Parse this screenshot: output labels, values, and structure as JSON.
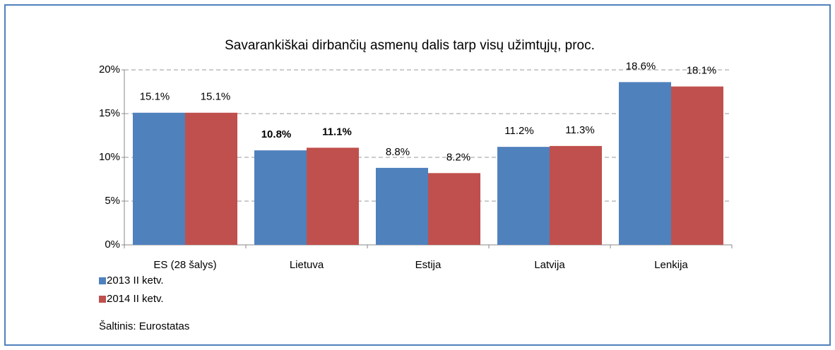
{
  "chart_data": {
    "type": "bar",
    "title": "Savarankiškai dirbančių asmenų dalis tarp visų užimtųjų, proc.",
    "categories": [
      "ES (28 šalys)",
      "Lietuva",
      "Estija",
      "Latvija",
      "Lenkija"
    ],
    "series": [
      {
        "name": "2013 II ketv.",
        "color": "#4f81bd",
        "values": [
          15.1,
          10.8,
          8.8,
          11.2,
          18.6
        ],
        "value_labels": [
          "15.1%",
          "10.8%",
          "8.8%",
          "11.2%",
          "18.6%"
        ]
      },
      {
        "name": "2014 II ketv.",
        "color": "#c0504d",
        "values": [
          15.1,
          11.1,
          8.2,
          11.3,
          18.1
        ],
        "value_labels": [
          "15.1%",
          "11.1%",
          "8.2%",
          "11.3%",
          "18.1%"
        ]
      }
    ],
    "ylim": [
      0,
      20
    ],
    "yticks": [
      {
        "value": 0,
        "label": "0%"
      },
      {
        "value": 5,
        "label": "5%"
      },
      {
        "value": 10,
        "label": "10%"
      },
      {
        "value": 15,
        "label": "15%"
      },
      {
        "value": 20,
        "label": "20%"
      }
    ],
    "grid": true,
    "highlight": "Lietuva",
    "source": "Šaltinis: Eurostatas"
  }
}
